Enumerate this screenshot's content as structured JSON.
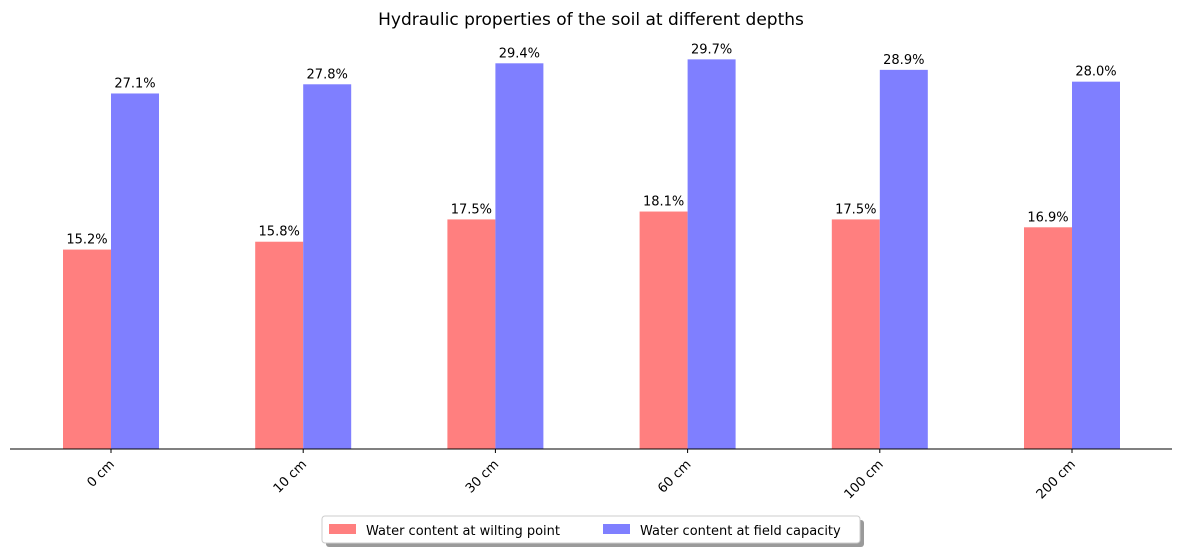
{
  "chart_data": {
    "type": "bar",
    "title": "Hydraulic properties of the soil at different depths",
    "xlabel": "",
    "ylabel": "",
    "ylim": [
      0,
      31.1
    ],
    "categories": [
      "0 cm",
      "10 cm",
      "30 cm",
      "60 cm",
      "100 cm",
      "200 cm"
    ],
    "series": [
      {
        "name": "Water content at wilting point",
        "color": "#ff7f7f",
        "values": [
          15.2,
          15.8,
          17.5,
          18.1,
          17.5,
          16.9
        ],
        "labels": [
          "15.2%",
          "15.8%",
          "17.5%",
          "18.1%",
          "17.5%",
          "16.9%"
        ]
      },
      {
        "name": "Water content at field capacity",
        "color": "#7f7fff",
        "values": [
          27.1,
          27.8,
          29.4,
          29.7,
          28.9,
          28.0
        ],
        "labels": [
          "27.1%",
          "27.8%",
          "29.4%",
          "29.7%",
          "28.9%",
          "28.0%"
        ]
      }
    ],
    "grid": false,
    "legend_position": "bottom-center",
    "x_tick_rotation": 45
  }
}
